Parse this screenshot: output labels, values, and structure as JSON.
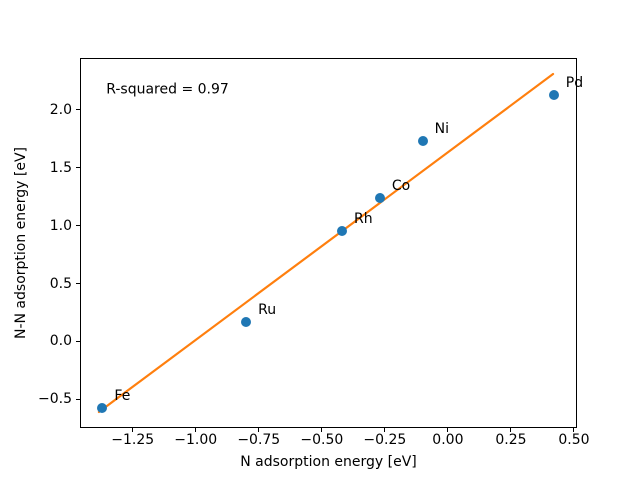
{
  "chart_data": {
    "type": "scatter",
    "title": "",
    "xlabel": "N adsorption energy [eV]",
    "ylabel": "N-N adsorption energy [eV]",
    "annotation": {
      "text": "R-squared = 0.97",
      "x": -1.355,
      "y": 2.17
    },
    "xlim": [
      -1.455,
      0.508
    ],
    "ylim": [
      -0.74,
      2.44
    ],
    "grid": false,
    "legend": false,
    "xticks": {
      "values": [
        -1.25,
        -1.0,
        -0.75,
        -0.5,
        -0.25,
        0.0,
        0.25,
        0.5
      ],
      "labels": [
        "−1.25",
        "−1.00",
        "−0.75",
        "−0.50",
        "−0.25",
        "0.00",
        "0.25",
        "0.50"
      ]
    },
    "yticks": {
      "values": [
        -0.5,
        0.0,
        0.5,
        1.0,
        1.5,
        2.0
      ],
      "labels": [
        "−0.5",
        "0.0",
        "0.5",
        "1.0",
        "1.5",
        "2.0"
      ]
    },
    "marker_color": "#1f77b4",
    "points": [
      {
        "label": "Fe",
        "x": -1.37,
        "y": -0.58
      },
      {
        "label": "Ru",
        "x": -0.8,
        "y": 0.17
      },
      {
        "label": "Rh",
        "x": -0.42,
        "y": 0.95
      },
      {
        "label": "Co",
        "x": -0.27,
        "y": 1.24
      },
      {
        "label": "Ni",
        "x": -0.1,
        "y": 1.73
      },
      {
        "label": "Pd",
        "x": 0.42,
        "y": 2.13
      }
    ],
    "fit_line": {
      "color": "#ff7f0e",
      "x1": -1.384,
      "y1": -0.61,
      "x2": 0.417,
      "y2": 2.31
    }
  }
}
